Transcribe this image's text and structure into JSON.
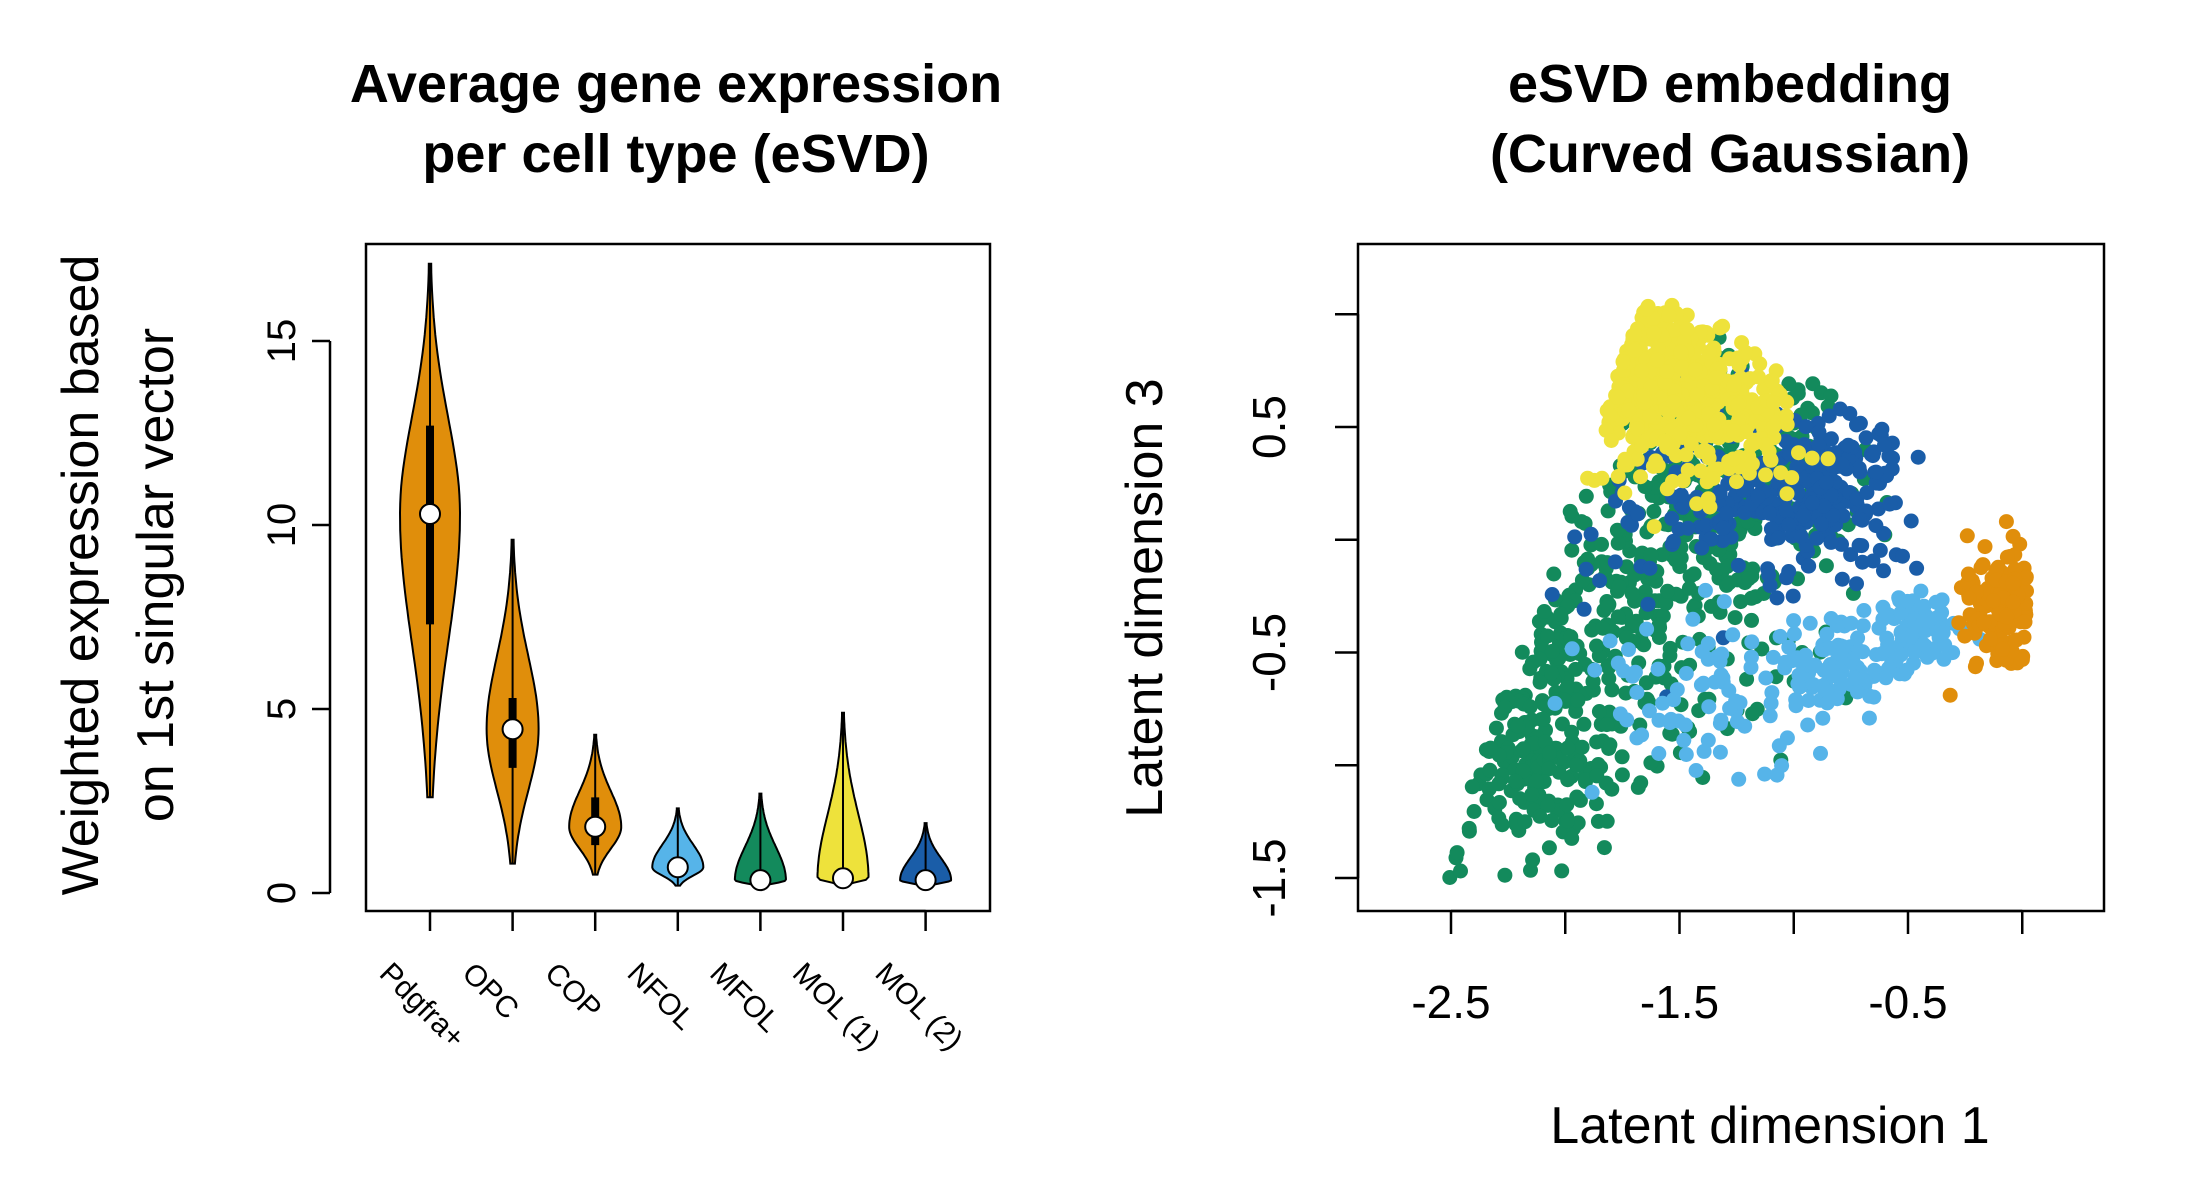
{
  "chart_data": [
    {
      "type": "violin",
      "title_line1": "Average gene expression",
      "title_line2": "per cell type (eSVD)",
      "ylabel_line1": "Weighted expression based",
      "ylabel_line2": "on 1st singular vector",
      "ylim": [
        -0.5,
        17.5
      ],
      "yticks": [
        "0",
        "5",
        "10",
        "15"
      ],
      "ytick_values": [
        0,
        5,
        10,
        15
      ],
      "categories": [
        "Pdgfra+",
        "OPC",
        "COP",
        "NFOL",
        "MFOL",
        "MOL (1)",
        "MOL (2)"
      ],
      "colors": [
        "#E08E0B",
        "#E08E0B",
        "#E08E0B",
        "#56B4E9",
        "#138A5C",
        "#EEE23B",
        "#1A5DA8"
      ],
      "min": [
        2.6,
        0.8,
        0.5,
        0.2,
        0.2,
        0.2,
        0.2
      ],
      "max": [
        17.1,
        9.6,
        4.3,
        2.3,
        2.7,
        4.9,
        1.9
      ],
      "q1": [
        7.3,
        3.4,
        1.3,
        0.5,
        0.3,
        0.25,
        0.25
      ],
      "q3": [
        12.7,
        5.3,
        2.6,
        0.9,
        0.6,
        0.55,
        0.45
      ],
      "median": [
        10.3,
        4.45,
        1.8,
        0.7,
        0.35,
        0.4,
        0.35
      ]
    },
    {
      "type": "scatter",
      "title_line1": "eSVD embedding",
      "title_line2": "(Curved Gaussian)",
      "xlabel": "Latent dimension 1",
      "ylabel": "Latent dimension 3",
      "xlim": [
        -2.9,
        0.4
      ],
      "ylim": [
        -1.65,
        1.3
      ],
      "xticks": [
        "-2.5",
        "-1.5",
        "-0.5"
      ],
      "xtick_values": [
        -2.5,
        -1.5,
        -0.5
      ],
      "yticks": [
        "-1.5",
        "-0.5",
        "0.5"
      ],
      "ytick_values": [
        -1.5,
        -0.5,
        0.5
      ],
      "series": [
        {
          "color": "#138A5C",
          "center_x": [
            -2.2,
            -1.75,
            -1.3
          ],
          "center_y": [
            -0.95,
            -0.35,
            0.3
          ],
          "spread": [
            0.25,
            0.35,
            0.3
          ],
          "count": 700
        },
        {
          "color": "#1A5DA8",
          "center_x": [
            -1.35,
            -1.0,
            -0.8
          ],
          "center_y": [
            0.15,
            0.2,
            0.25
          ],
          "spread": [
            0.25,
            0.18,
            0.2
          ],
          "count": 330
        },
        {
          "color": "#EEE23B",
          "center_x": [
            -1.75,
            -1.4
          ],
          "center_y": [
            0.75,
            0.6
          ],
          "spread": [
            0.2,
            0.2
          ],
          "count": 480
        },
        {
          "color": "#56B4E9",
          "center_x": [
            -1.4,
            -0.8,
            -0.45
          ],
          "center_y": [
            -0.75,
            -0.55,
            -0.4
          ],
          "spread": [
            0.25,
            0.12,
            0.08
          ],
          "count": 260
        },
        {
          "color": "#E08E0B",
          "center_x": [
            -0.1
          ],
          "center_y": [
            -0.25
          ],
          "spread": [
            0.1
          ],
          "count": 140
        }
      ]
    }
  ]
}
